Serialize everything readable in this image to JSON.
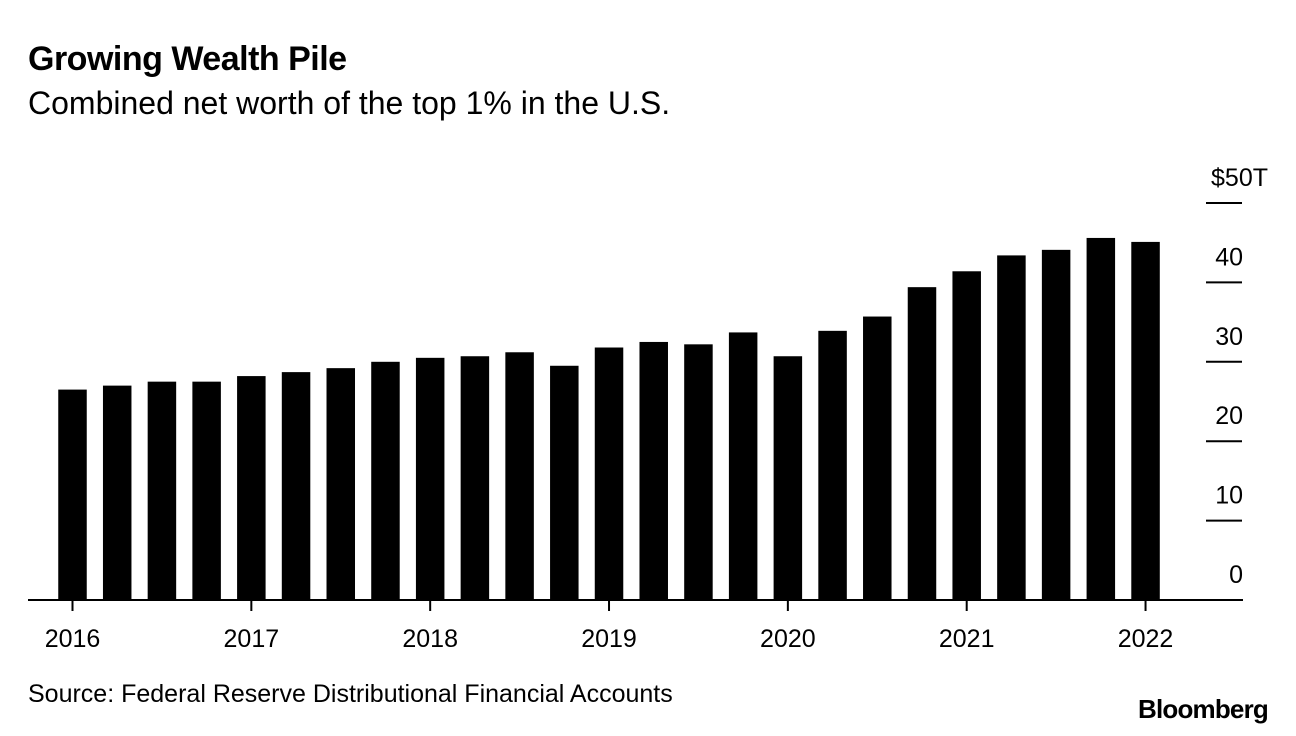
{
  "chart_data": {
    "type": "bar",
    "title": "Growing Wealth Pile",
    "subtitle": "Combined net worth of the top 1% in the U.S.",
    "unit_label": "$50T",
    "xlabel": "",
    "ylabel": "",
    "ylim": [
      0,
      50
    ],
    "y_ticks": [
      0,
      10,
      20,
      30,
      40,
      50
    ],
    "y_tick_labels": [
      "0",
      "10",
      "20",
      "30",
      "40",
      "$50T"
    ],
    "y_axis_position": "right",
    "grid": false,
    "x_tick_labels": [
      "2016",
      "2017",
      "2018",
      "2019",
      "2020",
      "2021",
      "2022"
    ],
    "categories": [
      "2016 Q1",
      "2016 Q2",
      "2016 Q3",
      "2016 Q4",
      "2017 Q1",
      "2017 Q2",
      "2017 Q3",
      "2017 Q4",
      "2018 Q1",
      "2018 Q2",
      "2018 Q3",
      "2018 Q4",
      "2019 Q1",
      "2019 Q2",
      "2019 Q3",
      "2019 Q4",
      "2020 Q1",
      "2020 Q2",
      "2020 Q3",
      "2020 Q4",
      "2021 Q1",
      "2021 Q2",
      "2021 Q3",
      "2021 Q4",
      "2022 Q1"
    ],
    "values": [
      26.5,
      27.0,
      27.5,
      27.5,
      28.2,
      28.7,
      29.2,
      30.0,
      30.5,
      30.7,
      31.2,
      29.5,
      31.8,
      32.5,
      32.2,
      33.7,
      30.7,
      33.9,
      35.7,
      39.4,
      41.4,
      43.4,
      44.1,
      45.6,
      45.1
    ],
    "bar_color": "#000000"
  },
  "source": "Source: Federal Reserve Distributional Financial Accounts",
  "brand": "Bloomberg"
}
